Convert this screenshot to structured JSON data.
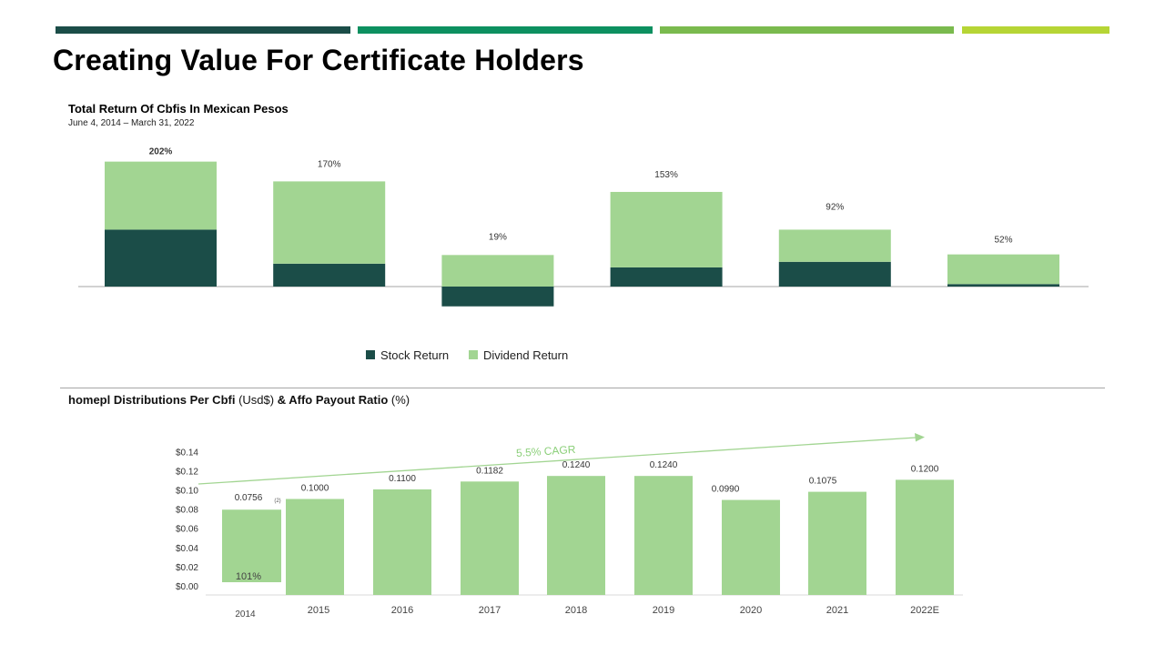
{
  "colors": {
    "accent_bars": [
      "#1b4d48",
      "#0d9060",
      "#7aba4e",
      "#b6d535"
    ],
    "stock_return": "#1b4d48",
    "dividend_return": "#a2d592",
    "cagr_arrow": "#a2d592",
    "axis": "#a6a6a6"
  },
  "page": {
    "title": "Creating Value For Certificate Holders"
  },
  "chart_data": [
    {
      "type": "bar",
      "stacked": true,
      "title": "Total Return Of Cbfis In Mexican Pesos",
      "subtitle": "June 4, 2014 – March 31, 2022",
      "categories": [
        "",
        "",
        "",
        "",
        "",
        ""
      ],
      "series": [
        {
          "name": "Stock Return",
          "values": [
            92,
            37,
            -32,
            31,
            40,
            4
          ]
        },
        {
          "name": "Dividend Return",
          "values": [
            110,
            133,
            51,
            122,
            52,
            48
          ]
        }
      ],
      "total_labels": [
        "202%",
        "170%",
        "19%",
        "153%",
        "92%",
        "52%"
      ],
      "legend": "bottom",
      "grid": false
    },
    {
      "type": "bar",
      "title_parts": [
        "homepl Distributions Per Cbfi",
        " (Usd$) ",
        "& Affo Payout Ratio",
        " (%)"
      ],
      "categories": [
        "2014",
        "2015",
        "2016",
        "2017",
        "2018",
        "2019",
        "2020",
        "2021",
        "2022E"
      ],
      "values": [
        0.0756,
        0.1,
        0.11,
        0.1182,
        0.124,
        0.124,
        0.099,
        0.1075,
        0.12
      ],
      "value_labels": [
        "0.0756",
        "0.1000",
        "0.1100",
        "0.1182",
        "0.1240",
        "0.1240",
        "0.0990",
        "0.1075",
        "0.1200"
      ],
      "y_ticks": [
        "$0.00",
        "$0.02",
        "$0.04",
        "$0.06",
        "$0.08",
        "$0.10",
        "$0.12",
        "$0.14"
      ],
      "ylim": [
        0,
        0.14
      ],
      "footnote_marker": "(2)",
      "inner_label": "101%",
      "annotation": "5.5% CAGR",
      "grid": false
    }
  ]
}
